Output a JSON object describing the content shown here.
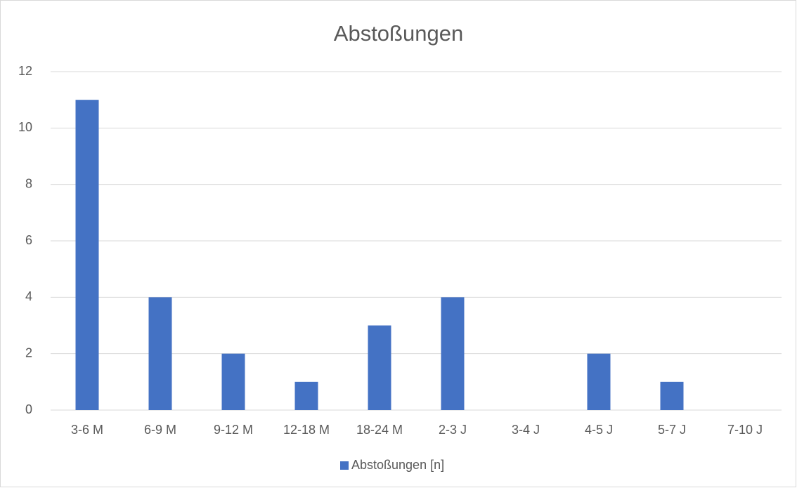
{
  "chart_data": {
    "type": "bar",
    "title": "Abstoßungen",
    "categories": [
      "3-6 M",
      "6-9 M",
      "9-12 M",
      "12-18 M",
      "18-24 M",
      "2-3 J",
      "3-4 J",
      "4-5 J",
      "5-7 J",
      "7-10 J"
    ],
    "series": [
      {
        "name": "Abstoßungen [n]",
        "color": "#4472c4",
        "values": [
          11,
          4,
          2,
          1,
          3,
          4,
          0,
          2,
          1,
          0
        ]
      }
    ],
    "ylim": [
      0,
      12
    ],
    "yticks": [
      0,
      2,
      4,
      6,
      8,
      10,
      12
    ],
    "grid": true,
    "legend": "bottom"
  }
}
